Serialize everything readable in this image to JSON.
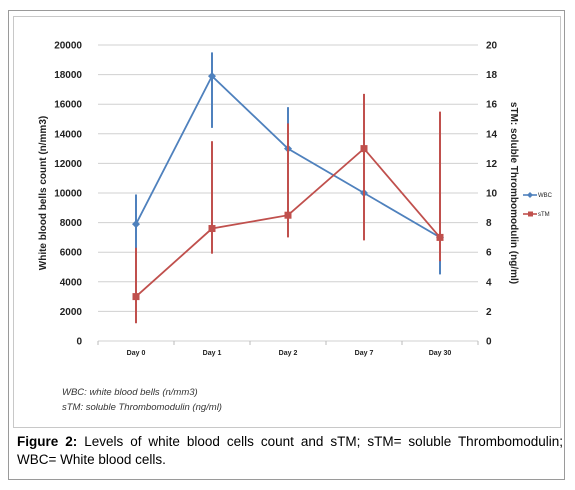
{
  "chart_data": {
    "type": "line",
    "categories": [
      "Day 0",
      "Day 1",
      "Day 2",
      "Day 7",
      "Day 30"
    ],
    "y_left": {
      "label": "White blood bells count (n/mm3)",
      "range": [
        0,
        20000
      ],
      "ticks": [
        "0",
        "2000",
        "4000",
        "6000",
        "8000",
        "10000",
        "12000",
        "14000",
        "16000",
        "18000",
        "20000"
      ]
    },
    "y_right": {
      "label": "sTM: soluble Thrombomodulin (ng/ml)",
      "range": [
        0,
        20
      ],
      "ticks": [
        "0",
        "2",
        "4",
        "6",
        "8",
        "10",
        "12",
        "14",
        "16",
        "18",
        "20"
      ]
    },
    "series": [
      {
        "name": "WBC",
        "axis": "left",
        "color": "#4f81bd",
        "values": [
          7900,
          17900,
          13000,
          10000,
          7000
        ],
        "error_low": [
          6000,
          14400,
          10400,
          8300,
          4500
        ],
        "error_high": [
          9900,
          19500,
          15800,
          11700,
          8400
        ]
      },
      {
        "name": "sTM",
        "axis": "right",
        "color": "#c0504d",
        "values": [
          3.0,
          7.6,
          8.5,
          13.0,
          7.0
        ],
        "error_low": [
          1.2,
          5.9,
          7.0,
          6.8,
          5.4
        ],
        "error_high": [
          6.3,
          13.5,
          14.7,
          16.7,
          15.5
        ]
      }
    ],
    "gridlines": "horizontal",
    "legend_position": "right"
  },
  "notes": {
    "line1": "WBC: white blood bells (n/mm3)",
    "line2": "sTM: soluble Thrombomodulin (ng/ml)"
  },
  "caption": {
    "label": "Figure 2:",
    "text": " Levels of white blood cells count and sTM; sTM= soluble Thrombomodulin; WBC= White blood cells."
  }
}
